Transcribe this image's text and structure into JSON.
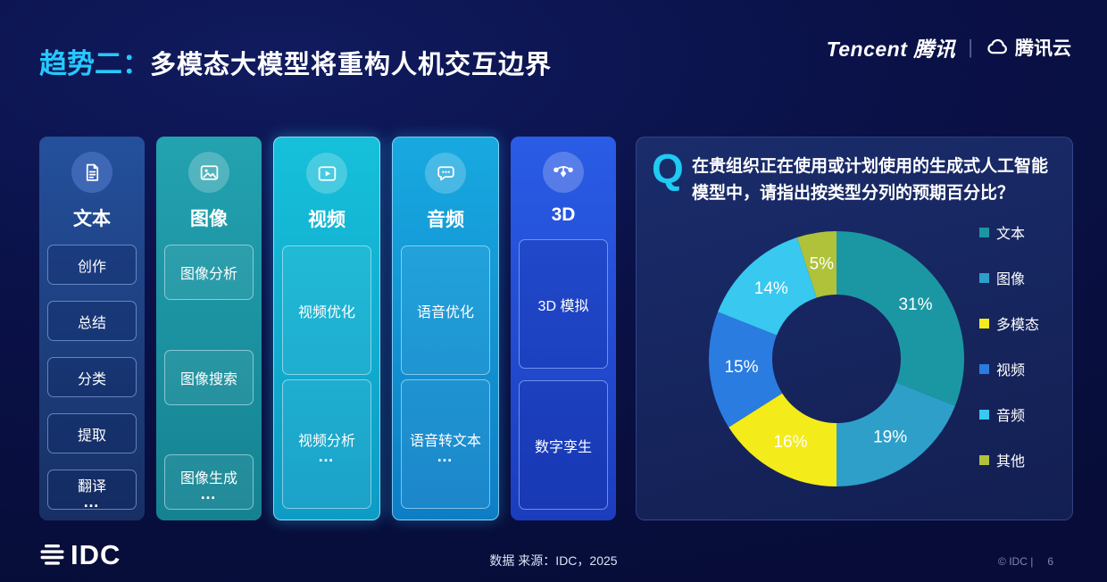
{
  "slide": {
    "title_prefix": "趋势二：",
    "title": "多模态大模型将重构人机交互边界"
  },
  "header": {
    "tencent_logo": "Tencent 腾讯",
    "divider": "|",
    "cloud_brand": "腾讯云"
  },
  "columns": [
    {
      "label": "文本",
      "icon": "document-icon",
      "items": [
        {
          "label": "创作"
        },
        {
          "label": "总结"
        },
        {
          "label": "分类"
        },
        {
          "label": "提取"
        },
        {
          "label": "翻译",
          "more": "…"
        }
      ]
    },
    {
      "label": "图像",
      "icon": "image-icon",
      "items": [
        {
          "label": "图像分析"
        },
        {
          "label": "图像搜索"
        },
        {
          "label": "图像生成",
          "more": "…"
        }
      ]
    },
    {
      "label": "视频",
      "icon": "video-icon",
      "items": [
        {
          "label": "视频优化"
        },
        {
          "label": "视频分析",
          "more": "…"
        }
      ]
    },
    {
      "label": "音频",
      "icon": "audio-icon",
      "items": [
        {
          "label": "语音优化"
        },
        {
          "label": "语音转文本",
          "more": "…"
        }
      ]
    },
    {
      "label": "3D",
      "icon": "3d-icon",
      "items": [
        {
          "label": "3D 模拟"
        },
        {
          "label": "数字孪生"
        }
      ]
    }
  ],
  "question": {
    "q_mark": "Q",
    "text": "在贵组织正在使用或计划使用的生成式人工智能模型中，请指出按类型分列的预期百分比？"
  },
  "chart_data": {
    "type": "pie",
    "subtype": "donut",
    "title": "在贵组织正在使用或计划使用的生成式人工智能模型中，请指出按类型分列的预期百分比？",
    "categories": [
      "文本",
      "图像",
      "多模态",
      "视频",
      "音频",
      "其他"
    ],
    "values": [
      31,
      19,
      16,
      15,
      14,
      5
    ],
    "labels": [
      "31%",
      "19%",
      "16%",
      "15%",
      "14%",
      "5%"
    ],
    "colors": [
      "#1b97a4",
      "#2e9fc9",
      "#f4eb1a",
      "#2a7ce0",
      "#38c8f0",
      "#afc23a"
    ],
    "legend_position": "right",
    "start_angle_deg": 0,
    "direction": "clockwise",
    "inner_radius_ratio": 0.5
  },
  "footer": {
    "source": "数据 来源：IDC，2025",
    "idc_logo": "IDC",
    "copyright": "© IDC |",
    "page": "6"
  }
}
